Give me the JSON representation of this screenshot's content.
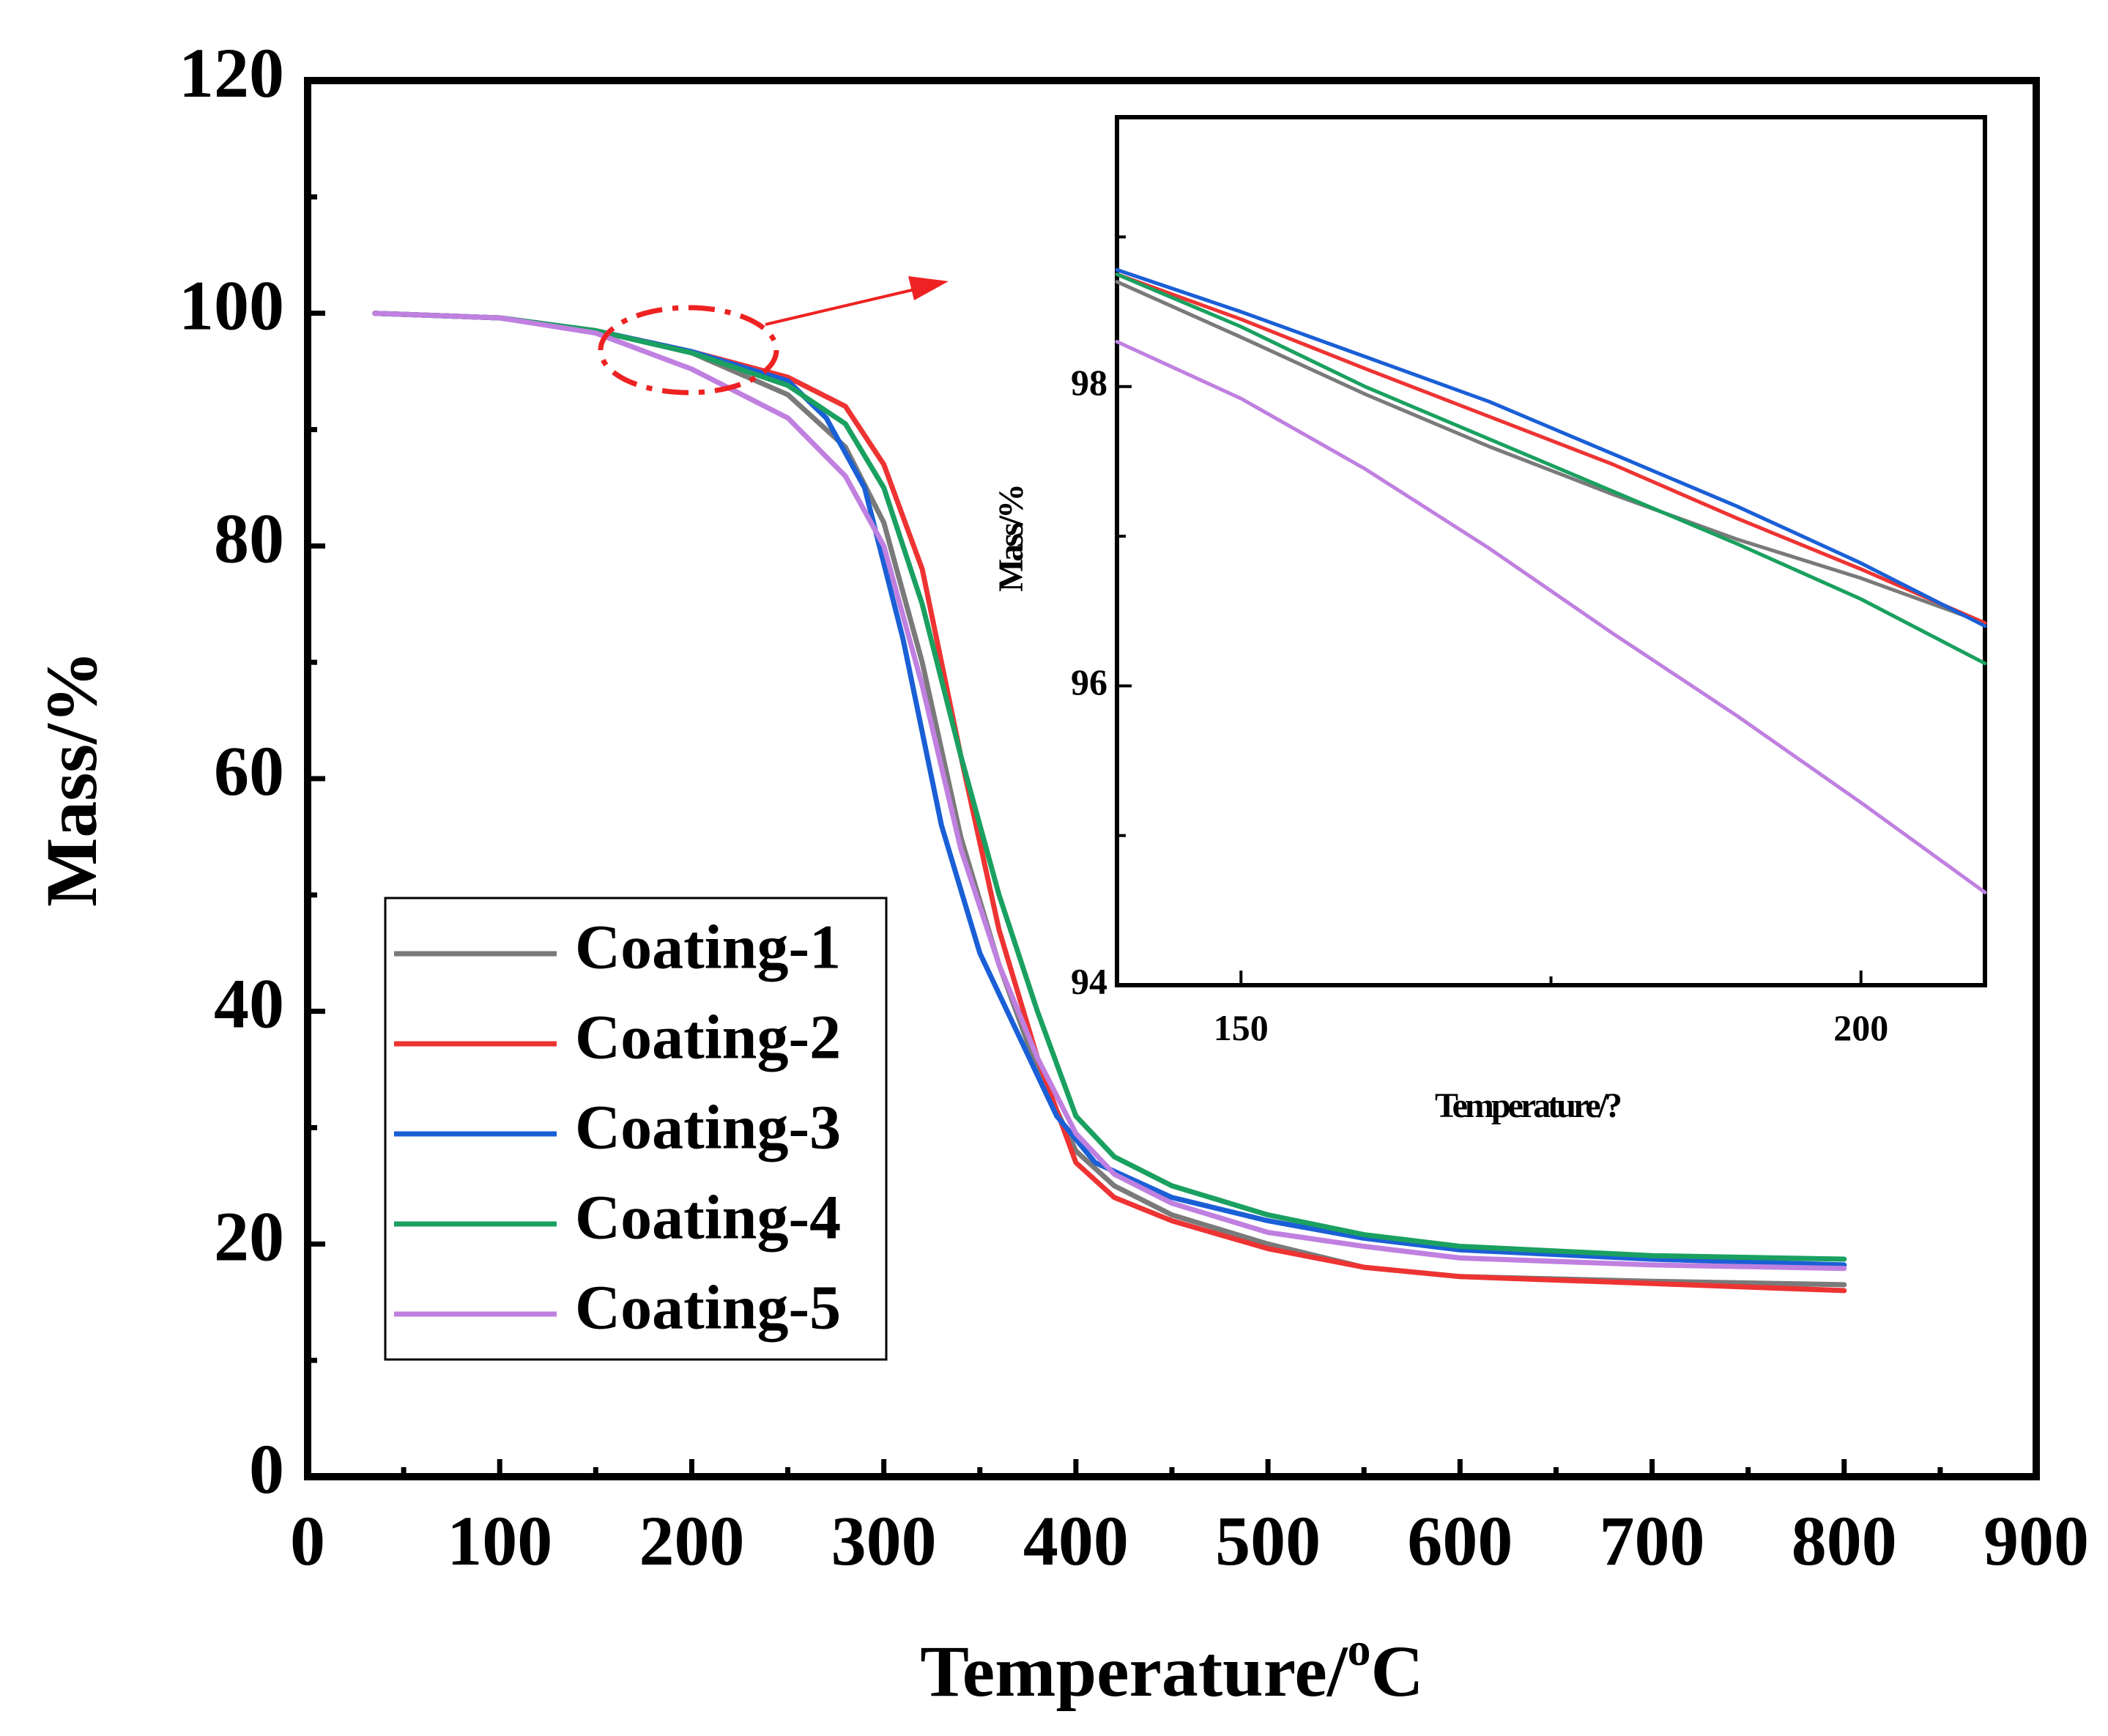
{
  "chart_data": [
    {
      "type": "line",
      "title": "",
      "xlabel": "Temperature/",
      "xlabel_sup": "o",
      "xlabel_unit": "C",
      "ylabel": "Mass/%",
      "xlim": [
        0,
        900
      ],
      "ylim": [
        0,
        120
      ],
      "xticks": [
        0,
        100,
        200,
        300,
        400,
        500,
        600,
        700,
        800,
        900
      ],
      "yticks": [
        0,
        20,
        40,
        60,
        80,
        100,
        120
      ],
      "series": [
        {
          "name": "Coating-1",
          "color": "#7a7a7a",
          "x": [
            35,
            100,
            150,
            200,
            250,
            280,
            300,
            320,
            340,
            360,
            380,
            400,
            420,
            450,
            500,
            550,
            600,
            700,
            800
          ],
          "y": [
            100,
            99.6,
            98.5,
            96.6,
            93,
            88.5,
            82,
            70,
            55,
            44,
            35,
            28,
            25,
            22.5,
            20,
            18,
            17.2,
            16.8,
            16.5
          ]
        },
        {
          "name": "Coating-2",
          "color": "#ee3333",
          "x": [
            35,
            100,
            150,
            200,
            250,
            280,
            300,
            320,
            340,
            360,
            380,
            400,
            420,
            450,
            500,
            550,
            600,
            700,
            800
          ],
          "y": [
            100,
            99.6,
            98.5,
            96.7,
            94.5,
            92,
            87,
            78,
            62,
            47,
            36,
            27,
            24,
            22,
            19.6,
            18,
            17.2,
            16.6,
            16
          ]
        },
        {
          "name": "Coating-3",
          "color": "#1a5fd6",
          "x": [
            35,
            100,
            150,
            200,
            250,
            270,
            290,
            310,
            330,
            350,
            370,
            390,
            410,
            450,
            500,
            550,
            600,
            700,
            800
          ],
          "y": [
            100,
            99.6,
            98.5,
            96.7,
            94.2,
            91,
            85,
            72,
            56,
            45,
            38,
            31,
            27,
            24,
            22,
            20.5,
            19.5,
            18.7,
            18.2
          ]
        },
        {
          "name": "Coating-4",
          "color": "#1aa060",
          "x": [
            35,
            100,
            150,
            200,
            250,
            280,
            300,
            320,
            340,
            360,
            380,
            400,
            420,
            450,
            500,
            550,
            600,
            700,
            800
          ],
          "y": [
            100,
            99.6,
            98.5,
            96.6,
            93.8,
            90.5,
            85,
            75,
            62,
            50,
            40,
            31,
            27.5,
            25,
            22.5,
            20.8,
            19.8,
            19,
            18.7
          ]
        },
        {
          "name": "Coating-5",
          "color": "#c080e0",
          "x": [
            35,
            100,
            150,
            200,
            250,
            280,
            300,
            320,
            340,
            360,
            380,
            400,
            420,
            450,
            500,
            550,
            600,
            700,
            800
          ],
          "y": [
            100,
            99.6,
            98.3,
            95.2,
            91,
            86,
            80,
            68,
            54,
            44,
            36,
            29.5,
            26,
            23.5,
            21,
            19.8,
            18.8,
            18.2,
            17.9
          ]
        }
      ]
    },
    {
      "type": "line",
      "title": "",
      "xlabel": "Temperature/?",
      "ylabel": "Mass/%",
      "xlim": [
        140,
        210
      ],
      "ylim": [
        94,
        99.8
      ],
      "xticks": [
        150,
        200
      ],
      "yticks": [
        94,
        96,
        98
      ],
      "series": [
        {
          "name": "Coating-1",
          "color": "#7a7a7a",
          "x": [
            140,
            150,
            160,
            170,
            180,
            190,
            200,
            210
          ],
          "y": [
            98.7,
            98.33,
            97.95,
            97.6,
            97.28,
            96.98,
            96.72,
            96.42
          ]
        },
        {
          "name": "Coating-2",
          "color": "#ee3333",
          "x": [
            140,
            150,
            160,
            170,
            180,
            190,
            200,
            210
          ],
          "y": [
            98.75,
            98.45,
            98.12,
            97.8,
            97.48,
            97.12,
            96.78,
            96.42
          ]
        },
        {
          "name": "Coating-3",
          "color": "#1a5fd6",
          "x": [
            140,
            150,
            160,
            170,
            180,
            190,
            200,
            210
          ],
          "y": [
            98.78,
            98.5,
            98.2,
            97.9,
            97.55,
            97.2,
            96.82,
            96.4
          ]
        },
        {
          "name": "Coating-4",
          "color": "#1aa060",
          "x": [
            140,
            150,
            160,
            170,
            180,
            190,
            200,
            210
          ],
          "y": [
            98.75,
            98.4,
            98.0,
            97.65,
            97.3,
            96.95,
            96.58,
            96.15
          ]
        },
        {
          "name": "Coating-5",
          "color": "#c080e0",
          "x": [
            140,
            150,
            160,
            170,
            180,
            190,
            200,
            210
          ],
          "y": [
            98.3,
            97.92,
            97.45,
            96.92,
            96.35,
            95.8,
            95.22,
            94.62
          ]
        }
      ]
    }
  ]
}
